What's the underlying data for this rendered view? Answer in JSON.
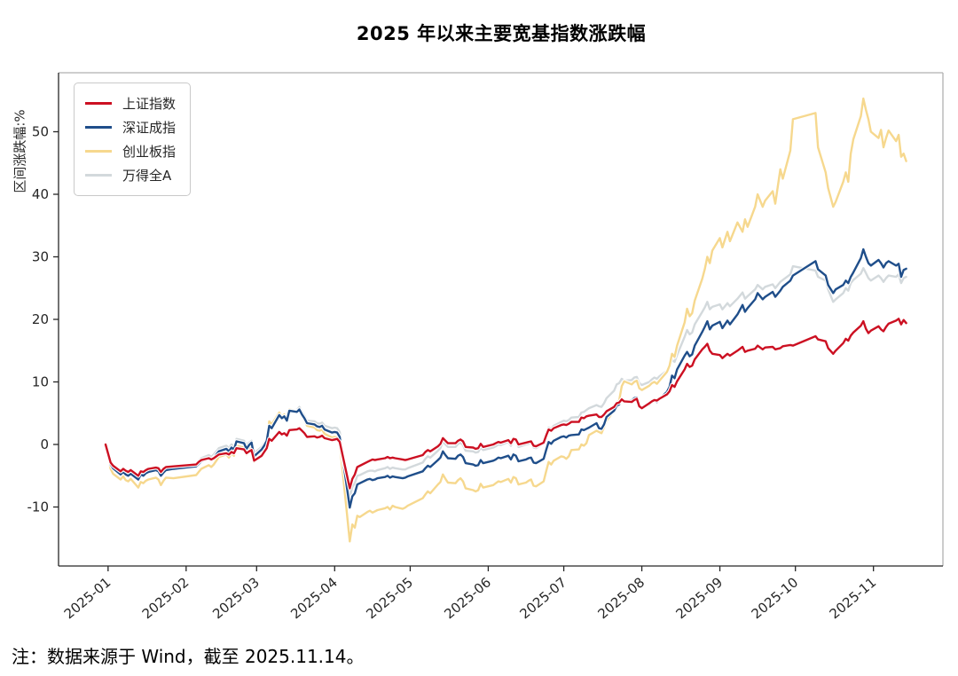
{
  "title": "2025 年以来主要宽基指数涨跌幅",
  "footer": {
    "note": "注：数据来源于 Wind，截至 2025.11.14。"
  },
  "chart_data": {
    "type": "line",
    "title": "2025 年以来主要宽基指数涨跌幅",
    "xlabel": "",
    "ylabel": "区间涨跌幅:%",
    "grid": false,
    "legend_position": "upper-left",
    "y_axis": {
      "ticks": [
        -10,
        0,
        10,
        20,
        30,
        40,
        50
      ],
      "range": [
        -19.4,
        59.4
      ]
    },
    "x_axis": {
      "unit": "days-since-2024-12-31",
      "tick_days": [
        1,
        32,
        60,
        91,
        121,
        152,
        182,
        213,
        244,
        274,
        305
      ],
      "tick_labels": [
        "2025-01",
        "2025-02",
        "2025-03",
        "2025-04",
        "2025-05",
        "2025-06",
        "2025-07",
        "2025-08",
        "2025-09",
        "2025-10",
        "2025-11"
      ],
      "label_rotation_deg": -40,
      "data_end_label": "2025.11.14"
    },
    "x_days": [
      0,
      2,
      3,
      6,
      7,
      8,
      9,
      10,
      13,
      14,
      15,
      16,
      17,
      20,
      21,
      22,
      23,
      24,
      27,
      36,
      37,
      38,
      41,
      42,
      43,
      44,
      45,
      48,
      49,
      50,
      51,
      52,
      55,
      56,
      57,
      58,
      59,
      62,
      63,
      64,
      65,
      66,
      69,
      70,
      71,
      72,
      73,
      76,
      77,
      78,
      79,
      80,
      83,
      84,
      85,
      86,
      87,
      90,
      91,
      92,
      93,
      97,
      98,
      99,
      100,
      101,
      104,
      105,
      106,
      107,
      108,
      111,
      112,
      113,
      114,
      115,
      118,
      119,
      120,
      126,
      127,
      128,
      129,
      132,
      133,
      134,
      135,
      136,
      139,
      140,
      141,
      142,
      143,
      146,
      147,
      148,
      149,
      150,
      154,
      155,
      156,
      157,
      160,
      161,
      162,
      163,
      164,
      167,
      168,
      169,
      170,
      171,
      174,
      175,
      176,
      177,
      178,
      181,
      182,
      183,
      184,
      185,
      188,
      189,
      190,
      191,
      192,
      195,
      196,
      197,
      198,
      199,
      202,
      203,
      204,
      205,
      206,
      209,
      210,
      211,
      212,
      213,
      216,
      217,
      218,
      219,
      220,
      223,
      224,
      225,
      226,
      227,
      230,
      231,
      232,
      233,
      234,
      237,
      238,
      239,
      240,
      241,
      244,
      245,
      247,
      248,
      251,
      253,
      254,
      255,
      258,
      259,
      261,
      262,
      265,
      266,
      268,
      269,
      272,
      273,
      282,
      283,
      286,
      287,
      289,
      290,
      293,
      294,
      295,
      296,
      297,
      300,
      301,
      302,
      303,
      304,
      307,
      308,
      309,
      310,
      311,
      314,
      315,
      316,
      317,
      318
    ],
    "series": [
      {
        "name": "上证指数",
        "color": "#cc1022",
        "values": [
          0,
          -2.9,
          -3.4,
          -4.3,
          -3.9,
          -4.2,
          -4.4,
          -4.1,
          -5.0,
          -4.3,
          -4.4,
          -4.1,
          -3.9,
          -3.7,
          -3.8,
          -4.4,
          -3.9,
          -3.6,
          -3.5,
          -3.2,
          -2.8,
          -2.5,
          -2.2,
          -2.4,
          -2.2,
          -1.9,
          -1.6,
          -1.4,
          -1.6,
          -1.2,
          -1.4,
          -0.6,
          -0.8,
          -1.4,
          -1.1,
          -0.9,
          -2.6,
          -1.8,
          -1.2,
          -0.6,
          0.9,
          0.6,
          2.0,
          1.6,
          1.8,
          1.4,
          2.3,
          2.4,
          2.6,
          2.2,
          1.8,
          1.2,
          1.3,
          1.1,
          1.2,
          1.4,
          1.0,
          0.7,
          0.8,
          0.9,
          0.4,
          -7.0,
          -5.5,
          -4.8,
          -3.6,
          -3.4,
          -2.8,
          -2.6,
          -2.4,
          -2.5,
          -2.4,
          -2.2,
          -2.0,
          -2.2,
          -2.1,
          -2.2,
          -2.4,
          -2.5,
          -2.4,
          -1.7,
          -1.2,
          -0.9,
          -1.1,
          -0.3,
          0.1,
          1.0,
          0.6,
          0.2,
          0.2,
          0.6,
          0.8,
          0.5,
          -0.4,
          -0.5,
          -0.7,
          -0.6,
          0.1,
          -0.4,
          0.0,
          0.2,
          0.4,
          0.3,
          0.7,
          0.2,
          0.9,
          0.8,
          0.0,
          0.3,
          0.4,
          0.5,
          -0.2,
          -0.3,
          0.3,
          1.4,
          2.4,
          2.2,
          2.6,
          3.1,
          3.2,
          3.1,
          3.3,
          3.6,
          3.6,
          4.3,
          4.2,
          4.5,
          4.6,
          4.8,
          4.4,
          4.4,
          4.8,
          5.3,
          6.0,
          6.6,
          6.7,
          7.2,
          6.9,
          6.8,
          7.1,
          7.3,
          6.1,
          5.8,
          6.6,
          6.9,
          7.1,
          7.0,
          7.3,
          8.0,
          8.5,
          9.5,
          9.2,
          10.1,
          12.0,
          12.9,
          12.4,
          12.6,
          13.6,
          15.2,
          15.6,
          16.1,
          15.0,
          14.5,
          14.3,
          13.8,
          14.5,
          14.2,
          15.0,
          15.6,
          14.8,
          15.0,
          15.3,
          15.8,
          15.2,
          15.5,
          15.6,
          15.2,
          15.4,
          15.7,
          15.9,
          15.8,
          17.3,
          16.8,
          16.5,
          15.4,
          14.5,
          15.0,
          16.2,
          16.9,
          16.6,
          17.4,
          17.9,
          19.0,
          19.7,
          18.5,
          17.8,
          18.2,
          18.9,
          18.4,
          18.1,
          18.8,
          19.3,
          19.8,
          20.1,
          19.2,
          19.9,
          19.4
        ]
      },
      {
        "name": "深证成指",
        "color": "#1f4e8a",
        "values": [
          0,
          -3.2,
          -3.8,
          -4.8,
          -4.4,
          -4.8,
          -5.0,
          -4.7,
          -5.6,
          -4.8,
          -5.0,
          -4.6,
          -4.4,
          -4.1,
          -4.3,
          -5.0,
          -4.5,
          -4.1,
          -3.9,
          -3.5,
          -3.1,
          -2.7,
          -2.2,
          -2.5,
          -2.1,
          -1.6,
          -1.1,
          -0.7,
          -1.1,
          -0.5,
          -0.8,
          0.5,
          0.2,
          -0.7,
          -0.1,
          0.3,
          -1.9,
          -0.8,
          -0.2,
          0.6,
          3.0,
          2.6,
          4.7,
          4.2,
          4.5,
          3.8,
          5.4,
          5.2,
          5.6,
          4.8,
          4.2,
          3.4,
          3.2,
          2.9,
          2.8,
          3.0,
          2.4,
          1.9,
          2.0,
          1.9,
          1.2,
          -10.1,
          -8.3,
          -7.8,
          -6.4,
          -6.2,
          -5.6,
          -5.5,
          -5.7,
          -5.6,
          -5.4,
          -5.2,
          -5.0,
          -5.3,
          -5.1,
          -5.2,
          -5.4,
          -5.3,
          -5.1,
          -4.3,
          -3.8,
          -3.4,
          -3.6,
          -2.5,
          -2.1,
          -1.1,
          -1.7,
          -2.2,
          -2.3,
          -1.8,
          -1.6,
          -2.0,
          -3.0,
          -3.2,
          -3.4,
          -3.3,
          -2.5,
          -3.0,
          -2.6,
          -2.4,
          -2.1,
          -2.2,
          -1.8,
          -2.4,
          -1.6,
          -1.8,
          -2.7,
          -2.4,
          -2.2,
          -2.1,
          -2.9,
          -3.0,
          -2.3,
          -0.9,
          0.4,
          0.1,
          0.6,
          1.2,
          1.3,
          1.1,
          1.4,
          1.5,
          1.6,
          2.4,
          2.3,
          2.5,
          2.7,
          3.4,
          2.6,
          2.5,
          3.2,
          4.4,
          5.4,
          6.2,
          6.4,
          7.2,
          6.9,
          7.0,
          7.4,
          7.5,
          6.3,
          5.8,
          6.4,
          6.8,
          7.0,
          6.8,
          7.3,
          8.4,
          9.2,
          11.0,
          10.6,
          12.0,
          14.2,
          14.8,
          14.1,
          14.4,
          15.8,
          18.0,
          18.8,
          19.7,
          18.4,
          19.0,
          19.6,
          18.6,
          19.8,
          19.2,
          20.8,
          22.3,
          21.2,
          21.8,
          23.2,
          24.2,
          23.2,
          23.6,
          24.4,
          23.6,
          24.6,
          25.2,
          26.2,
          27.0,
          29.3,
          28.0,
          27.0,
          25.5,
          24.2,
          24.8,
          25.5,
          26.2,
          25.8,
          26.8,
          27.5,
          29.8,
          31.2,
          30.0,
          29.0,
          28.6,
          29.5,
          29.0,
          28.3,
          29.0,
          29.3,
          28.6,
          28.9,
          26.8,
          27.9,
          28.1
        ]
      },
      {
        "name": "创业板指",
        "color": "#f6d88e",
        "values": [
          0,
          -3.9,
          -4.7,
          -5.6,
          -5.1,
          -5.7,
          -5.9,
          -5.5,
          -6.9,
          -6.0,
          -6.2,
          -5.8,
          -5.6,
          -5.3,
          -5.6,
          -6.5,
          -5.8,
          -5.3,
          -5.4,
          -4.9,
          -4.4,
          -3.9,
          -3.3,
          -3.6,
          -3.2,
          -2.6,
          -2.0,
          -1.6,
          -2.1,
          -1.4,
          -1.8,
          -0.2,
          -0.5,
          -1.6,
          -0.8,
          -0.4,
          -2.8,
          -1.5,
          -0.8,
          0.0,
          3.7,
          3.2,
          5.1,
          4.4,
          4.8,
          3.9,
          5.6,
          5.3,
          5.5,
          4.6,
          3.9,
          3.0,
          2.7,
          2.3,
          2.2,
          2.4,
          1.7,
          1.1,
          1.2,
          1.1,
          0.3,
          -15.5,
          -12.8,
          -13.3,
          -11.4,
          -11.6,
          -10.8,
          -10.6,
          -10.9,
          -10.7,
          -10.5,
          -10.2,
          -10.0,
          -10.4,
          -9.8,
          -10.0,
          -10.3,
          -10.1,
          -9.8,
          -8.6,
          -8.0,
          -7.5,
          -7.8,
          -6.4,
          -6.0,
          -4.8,
          -5.5,
          -6.1,
          -6.2,
          -5.7,
          -5.4,
          -5.9,
          -7.0,
          -7.3,
          -7.5,
          -7.3,
          -6.3,
          -6.9,
          -6.5,
          -6.2,
          -5.9,
          -6.0,
          -5.5,
          -6.1,
          -5.2,
          -5.4,
          -6.4,
          -6.1,
          -5.8,
          -5.6,
          -6.6,
          -6.7,
          -5.9,
          -4.3,
          -2.8,
          -3.2,
          -2.6,
          -1.9,
          -2.0,
          -2.3,
          -1.9,
          -0.9,
          -0.8,
          0.0,
          -0.2,
          0.2,
          1.5,
          2.2,
          2.0,
          1.8,
          2.8,
          3.8,
          5.4,
          6.6,
          7.0,
          9.3,
          10.1,
          9.6,
          10.0,
          10.2,
          9.0,
          8.7,
          9.4,
          9.8,
          10.0,
          9.7,
          10.2,
          11.6,
          12.6,
          14.5,
          14.0,
          15.8,
          19.5,
          21.7,
          20.5,
          21.0,
          23.0,
          26.5,
          28.0,
          30.0,
          29.0,
          31.0,
          33.0,
          31.5,
          34.0,
          32.5,
          35.5,
          34.0,
          36.0,
          34.8,
          38.0,
          40.0,
          38.0,
          39.0,
          40.5,
          38.5,
          44.0,
          42.5,
          47.0,
          52.0,
          53.0,
          47.5,
          43.5,
          41.0,
          38.0,
          38.8,
          42.0,
          43.5,
          42.0,
          46.5,
          48.8,
          52.5,
          55.3,
          53.5,
          52.0,
          50.0,
          49.0,
          50.3,
          47.5,
          49.0,
          50.2,
          48.5,
          49.5,
          46.0,
          46.5,
          45.3
        ]
      },
      {
        "name": "万得全A",
        "color": "#d3d9dc",
        "values": [
          0,
          -2.8,
          -3.3,
          -4.2,
          -3.8,
          -4.1,
          -4.3,
          -4.0,
          -4.9,
          -4.2,
          -4.3,
          -4.0,
          -3.8,
          -3.6,
          -3.7,
          -4.3,
          -3.9,
          -3.6,
          -3.5,
          -3.1,
          -2.6,
          -2.2,
          -1.7,
          -2.0,
          -1.6,
          -1.1,
          -0.6,
          -0.2,
          -0.6,
          0.0,
          -0.3,
          0.9,
          0.6,
          -0.1,
          0.3,
          0.6,
          -1.4,
          -0.4,
          0.2,
          0.9,
          3.4,
          3.0,
          4.9,
          4.5,
          4.8,
          4.1,
          5.6,
          5.5,
          6.0,
          5.2,
          4.6,
          3.8,
          3.7,
          3.4,
          3.3,
          3.5,
          3.0,
          2.6,
          2.7,
          2.6,
          2.0,
          -8.4,
          -6.8,
          -6.2,
          -5.0,
          -4.9,
          -4.3,
          -4.2,
          -4.2,
          -4.3,
          -4.1,
          -3.8,
          -3.6,
          -3.9,
          -3.7,
          -3.8,
          -4.0,
          -4.0,
          -3.8,
          -2.9,
          -2.3,
          -1.9,
          -2.1,
          -1.0,
          -0.6,
          0.5,
          0.0,
          -0.4,
          -0.4,
          0.1,
          0.3,
          -0.1,
          -1.0,
          -1.1,
          -1.3,
          -1.2,
          -0.5,
          -0.9,
          -0.5,
          -0.3,
          0.0,
          -0.1,
          0.4,
          -0.2,
          0.6,
          0.5,
          -0.4,
          0.0,
          0.1,
          0.3,
          -0.5,
          -0.6,
          0.2,
          1.5,
          2.7,
          2.5,
          3.0,
          3.6,
          3.8,
          3.7,
          3.9,
          4.3,
          4.4,
          5.1,
          5.2,
          5.5,
          5.8,
          6.3,
          6.1,
          6.0,
          6.6,
          7.4,
          8.6,
          9.6,
          9.8,
          10.5,
          10.2,
          10.3,
          10.7,
          10.8,
          9.8,
          9.5,
          10.0,
          10.4,
          10.7,
          10.5,
          10.9,
          11.8,
          12.4,
          13.5,
          13.2,
          14.3,
          17.2,
          18.3,
          17.6,
          17.9,
          19.2,
          21.2,
          21.9,
          22.8,
          21.6,
          22.0,
          22.4,
          21.6,
          22.6,
          22.1,
          23.3,
          24.3,
          23.3,
          23.7,
          24.8,
          25.5,
          24.8,
          25.2,
          25.6,
          25.0,
          26.0,
          26.3,
          27.2,
          28.5,
          27.8,
          26.8,
          26.2,
          24.8,
          22.8,
          23.2,
          24.2,
          25.0,
          24.6,
          25.8,
          26.3,
          27.3,
          28.2,
          27.4,
          26.6,
          26.2,
          27.0,
          26.6,
          26.0,
          26.6,
          27.0,
          26.8,
          27.2,
          25.8,
          26.6,
          26.8
        ]
      }
    ]
  }
}
